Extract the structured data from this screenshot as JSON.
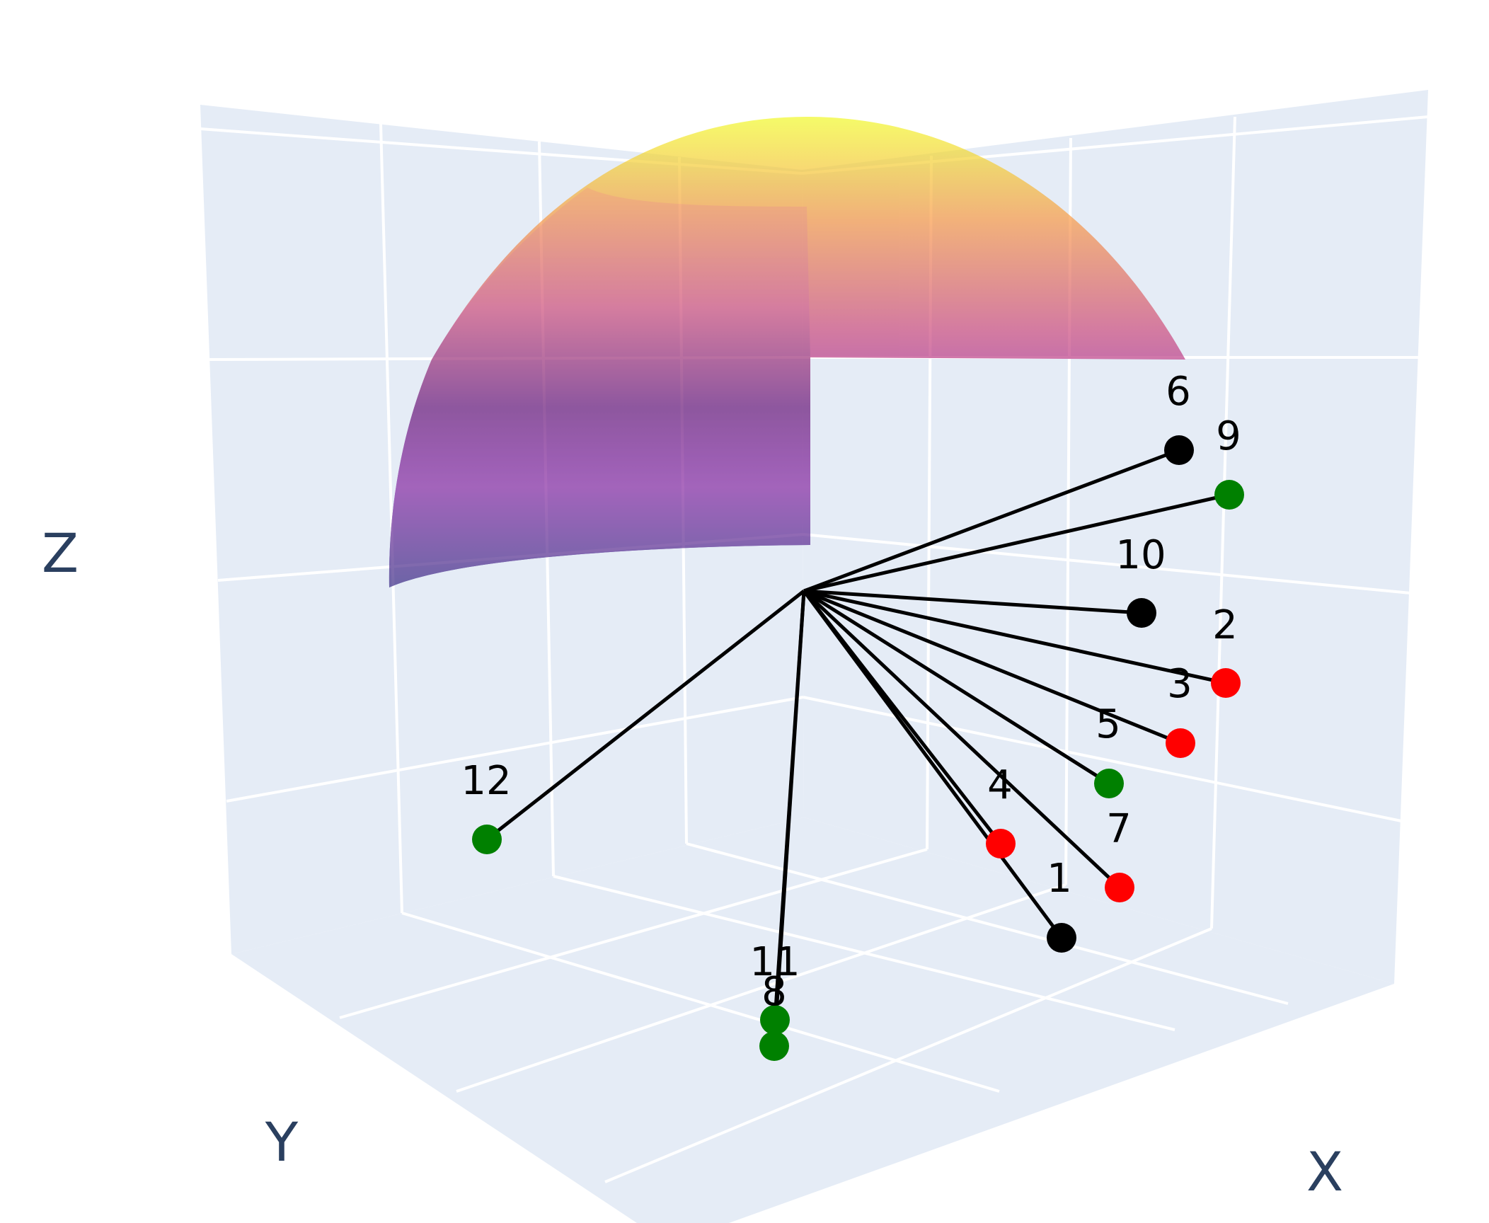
{
  "chart_data": {
    "type": "scatter3d",
    "title": "",
    "axes": {
      "x": {
        "title": "X",
        "show_tick_labels": false
      },
      "y": {
        "title": "Y",
        "show_tick_labels": false
      },
      "z": {
        "title": "Z",
        "show_tick_labels": false
      }
    },
    "grid": true,
    "legend": "none",
    "background_color": "#e5ecf6",
    "grid_color": "#ffffff",
    "surface": {
      "shape": "spherical-cap",
      "colorscale": "plasma",
      "opacity": 0.65,
      "colors": [
        "#0d0887",
        "#7e03a8",
        "#cc4778",
        "#f89540",
        "#f0f921"
      ]
    },
    "points": [
      {
        "label": "1",
        "color": "#000000",
        "group": "black"
      },
      {
        "label": "2",
        "color": "#ff0000",
        "group": "red"
      },
      {
        "label": "3",
        "color": "#ff0000",
        "group": "red"
      },
      {
        "label": "4",
        "color": "#ff0000",
        "group": "red"
      },
      {
        "label": "5",
        "color": "#008000",
        "group": "green"
      },
      {
        "label": "6",
        "color": "#000000",
        "group": "black"
      },
      {
        "label": "7",
        "color": "#ff0000",
        "group": "red"
      },
      {
        "label": "8",
        "color": "#008000",
        "group": "green"
      },
      {
        "label": "9",
        "color": "#008000",
        "group": "green"
      },
      {
        "label": "10",
        "color": "#000000",
        "group": "black"
      },
      {
        "label": "11",
        "color": "#008000",
        "group": "green"
      },
      {
        "label": "12",
        "color": "#008000",
        "group": "green"
      }
    ],
    "line_color": "#000000"
  }
}
